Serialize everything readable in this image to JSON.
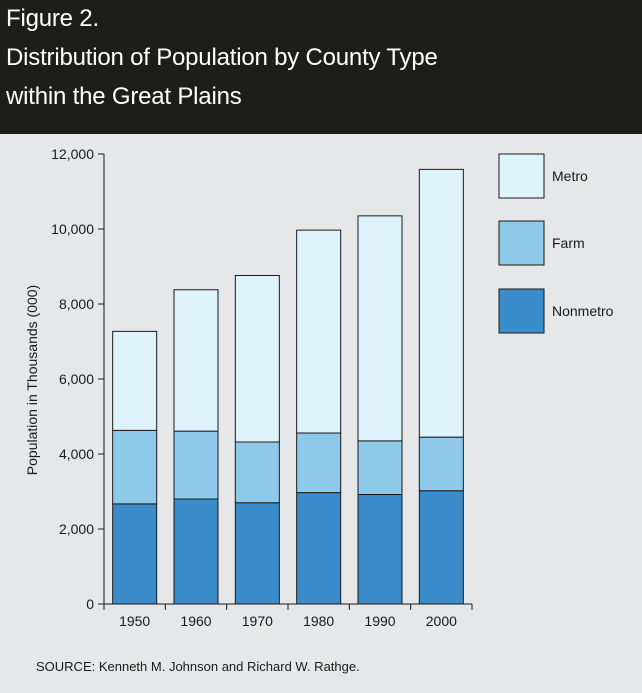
{
  "figure": {
    "label": "Figure 2.",
    "title_line1": "Distribution of Population by County Type",
    "title_line2": "within the Great Plains"
  },
  "source": "SOURCE: Kenneth M. Johnson and Richard W. Rathge.",
  "colors": {
    "header_bg": "#1d1d1b",
    "page_bg": "#e6e7e8",
    "metro": "#dff3fc",
    "farm": "#8ec9ea",
    "nonmetro": "#3a8cca"
  },
  "chart_data": {
    "type": "bar",
    "stacked": true,
    "categories": [
      "1950",
      "1960",
      "1970",
      "1980",
      "1990",
      "2000"
    ],
    "series": [
      {
        "name": "Nonmetro",
        "values": [
          2670,
          2800,
          2700,
          2970,
          2920,
          3020
        ]
      },
      {
        "name": "Farm",
        "values": [
          1960,
          1810,
          1620,
          1590,
          1430,
          1430
        ]
      },
      {
        "name": "Metro",
        "values": [
          2640,
          3770,
          4440,
          5410,
          6000,
          7140
        ]
      }
    ],
    "xlabel": "",
    "ylabel": "Population in Thousands (000)",
    "ylim": [
      0,
      12000
    ],
    "yticks": [
      "0",
      "2,000",
      "4,000",
      "6,000",
      "8,000",
      "10,000",
      "12,000"
    ],
    "grid": false,
    "legend_placement": "right",
    "legend": [
      "Metro",
      "Farm",
      "Nonmetro"
    ]
  }
}
